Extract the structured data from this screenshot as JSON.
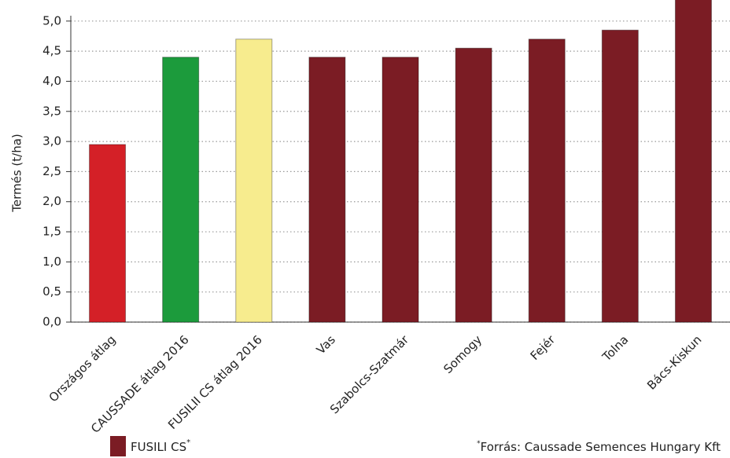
{
  "chart_data": {
    "type": "bar",
    "y_label": "Termés (t/ha)",
    "categories": [
      "Országos átlag",
      "CAUSSADE átlag 2016",
      "FUSILII CS átlag 2016",
      "Vas",
      "Szabolcs-Szatmár",
      "Somogy",
      "Fejér",
      "Tolna",
      "Bács-Kiskun"
    ],
    "values": [
      2.95,
      4.4,
      4.7,
      4.4,
      4.4,
      4.55,
      4.7,
      4.85,
      5.4
    ],
    "colors": [
      "#d42027",
      "#1c9b3c",
      "#f7ec8e",
      "#7b1c24",
      "#7b1c24",
      "#7b1c24",
      "#7b1c24",
      "#7b1c24",
      "#7b1c24"
    ],
    "ylim": [
      0,
      5.35
    ],
    "yticks": [
      {
        "value": 0,
        "label": "0,0"
      },
      {
        "value": 0.5,
        "label": "0,5"
      },
      {
        "value": 1,
        "label": "1,0"
      },
      {
        "value": 1.5,
        "label": "1,5"
      },
      {
        "value": 2,
        "label": "2,0"
      },
      {
        "value": 2.5,
        "label": "2,5"
      },
      {
        "value": 3,
        "label": "3,0"
      },
      {
        "value": 3.5,
        "label": "3,5"
      },
      {
        "value": 4,
        "label": "4,0"
      },
      {
        "value": 4.5,
        "label": "4,5"
      },
      {
        "value": 5,
        "label": "5,0"
      }
    ],
    "grid": true,
    "legend": {
      "label": "FUSILI CS",
      "mark": "*",
      "color": "#7b1c24"
    },
    "source": {
      "mark": "*",
      "text": "Forrás:  Caussade Semences Hungary Kft"
    }
  }
}
